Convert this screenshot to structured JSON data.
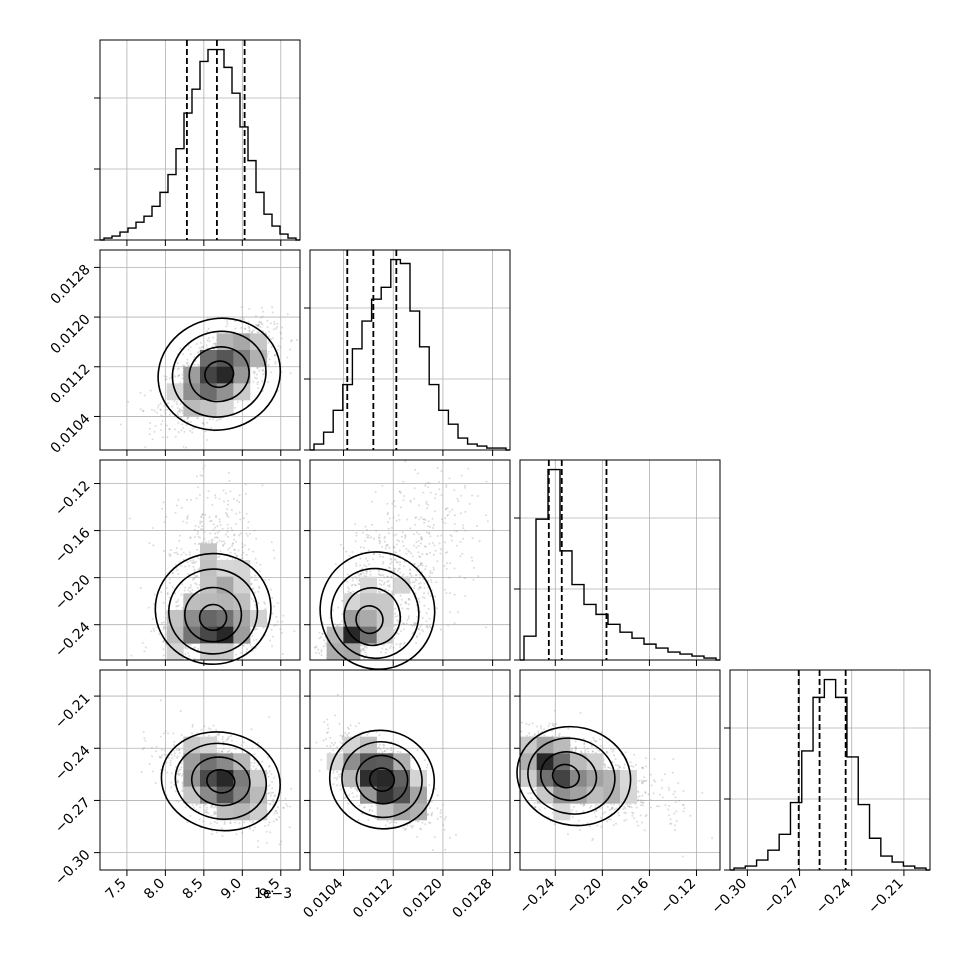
{
  "chart_data": {
    "type": "corner",
    "grid": true,
    "quantile_lines": "dashed",
    "parameters": [
      {
        "range": [
          7.15,
          9.75
        ],
        "ticks": [
          7.5,
          8.0,
          8.5,
          9.0,
          9.5
        ],
        "tick_labels": [
          "7.5",
          "8.0",
          "8.5",
          "9.0",
          "9.5"
        ],
        "offset_text": "1e−3",
        "quantiles": [
          8.28,
          8.67,
          9.03
        ],
        "hist_counts": [
          1,
          2,
          4,
          6,
          9,
          12,
          17,
          24,
          33,
          46,
          64,
          76,
          90,
          96,
          96,
          87,
          74,
          57,
          40,
          24,
          13,
          7,
          3,
          1
        ],
        "mode": 8.72
      },
      {
        "range": [
          0.00986,
          0.01308
        ],
        "ticks": [
          0.0104,
          0.0112,
          0.012,
          0.0128
        ],
        "tick_labels": [
          "0.0104",
          "0.0112",
          "0.0120",
          "0.0128"
        ],
        "quantiles": [
          0.01046,
          0.01088,
          0.01125
        ],
        "hist_counts": [
          3,
          9,
          20,
          33,
          51,
          65,
          76,
          82,
          96,
          94,
          70,
          52,
          33,
          20,
          13,
          6,
          3,
          2,
          1,
          1
        ],
        "mode": 0.0111
      },
      {
        "range": [
          -0.27,
          -0.1
        ],
        "ticks": [
          -0.24,
          -0.2,
          -0.16,
          -0.12
        ],
        "tick_labels": [
          "−0.24",
          "−0.20",
          "−0.16",
          "−0.12"
        ],
        "quantiles": [
          -0.2455,
          -0.2345,
          -0.1965
        ],
        "hist_counts": [
          12,
          71,
          96,
          55,
          38,
          28,
          23,
          18,
          14,
          11,
          8,
          6,
          4,
          3,
          2,
          1
        ],
        "mode": -0.24
      },
      {
        "range": [
          -0.31,
          -0.195
        ],
        "ticks": [
          -0.3,
          -0.27,
          -0.24,
          -0.21
        ],
        "tick_labels": [
          "−0.30",
          "−0.27",
          "−0.24",
          "−0.21"
        ],
        "quantiles": [
          -0.2705,
          -0.2585,
          -0.2435
        ],
        "hist_counts": [
          1,
          2,
          5,
          10,
          18,
          34,
          60,
          87,
          96,
          87,
          57,
          33,
          16,
          7,
          4,
          2,
          1
        ],
        "mode": -0.259
      }
    ],
    "pairs": [
      {
        "row": 1,
        "col": 0,
        "center": [
          8.7,
          0.01108
        ],
        "spread": [
          0.34,
          0.00038
        ],
        "corr": 0.6,
        "skew": [
          0,
          0
        ]
      },
      {
        "row": 2,
        "col": 0,
        "center": [
          8.62,
          -0.236
        ],
        "spread": [
          0.32,
          0.016
        ],
        "corr": 0.12,
        "skew": [
          0,
          1
        ]
      },
      {
        "row": 2,
        "col": 1,
        "center": [
          0.01078,
          -0.238
        ],
        "spread": [
          0.00034,
          0.017
        ],
        "corr": 0.72,
        "skew": [
          1,
          1
        ]
      },
      {
        "row": 3,
        "col": 0,
        "center": [
          8.72,
          -0.259
        ],
        "spread": [
          0.33,
          0.012
        ],
        "corr": -0.42,
        "skew": [
          0,
          0
        ]
      },
      {
        "row": 3,
        "col": 1,
        "center": [
          0.01102,
          -0.258
        ],
        "spread": [
          0.00036,
          0.012
        ],
        "corr": -0.55,
        "skew": [
          0,
          0
        ]
      },
      {
        "row": 3,
        "col": 2,
        "center": [
          -0.233,
          -0.256
        ],
        "spread": [
          0.018,
          0.012
        ],
        "corr": -0.45,
        "skew": [
          1,
          0
        ]
      }
    ]
  }
}
